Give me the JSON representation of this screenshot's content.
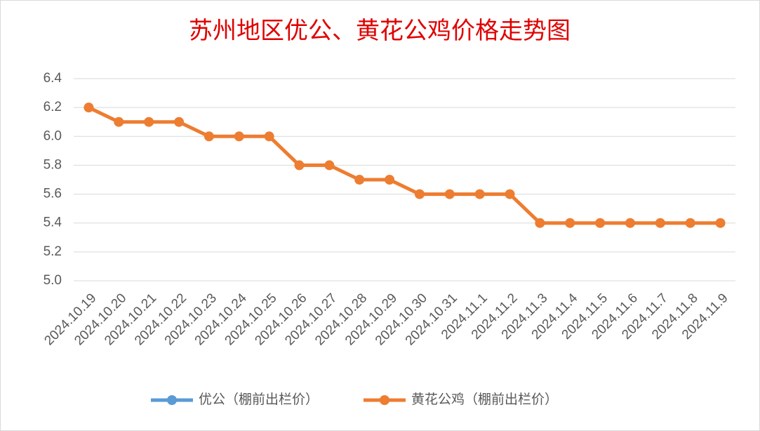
{
  "chart_data": {
    "type": "line",
    "title": "苏州地区优公、黄花公鸡价格走势图",
    "categories": [
      "2024.10.19",
      "2024.10.20",
      "2024.10.21",
      "2024.10.22",
      "2024.10.23",
      "2024.10.24",
      "2024.10.25",
      "2024.10.26",
      "2024.10.27",
      "2024.10.28",
      "2024.10.29",
      "2024.10.30",
      "2024.10.31",
      "2024.11.1",
      "2024.11.2",
      "2024.11.3",
      "2024.11.4",
      "2024.11.5",
      "2024.11.6",
      "2024.11.7",
      "2024.11.8",
      "2024.11.9"
    ],
    "series": [
      {
        "name": "优公（棚前出栏价）",
        "color": "#5b9bd5",
        "values": [
          null,
          null,
          null,
          null,
          null,
          null,
          null,
          null,
          null,
          null,
          null,
          null,
          null,
          null,
          null,
          null,
          null,
          null,
          null,
          null,
          null,
          null
        ]
      },
      {
        "name": "黄花公鸡（棚前出栏价）",
        "color": "#ed7d31",
        "values": [
          6.2,
          6.1,
          6.1,
          6.1,
          6.0,
          6.0,
          6.0,
          5.8,
          5.8,
          5.7,
          5.7,
          5.6,
          5.6,
          5.6,
          5.6,
          5.4,
          5.4,
          5.4,
          5.4,
          5.4,
          5.4,
          5.4
        ]
      }
    ],
    "ylim": [
      5,
      6.4
    ],
    "yticks": [
      {
        "value": 5,
        "label": "5.0"
      },
      5.2,
      5.4,
      5.6,
      5.8,
      {
        "value": 6,
        "label": "6.0"
      },
      6.2,
      6.4
    ],
    "grid": true,
    "legend": "bottom"
  }
}
